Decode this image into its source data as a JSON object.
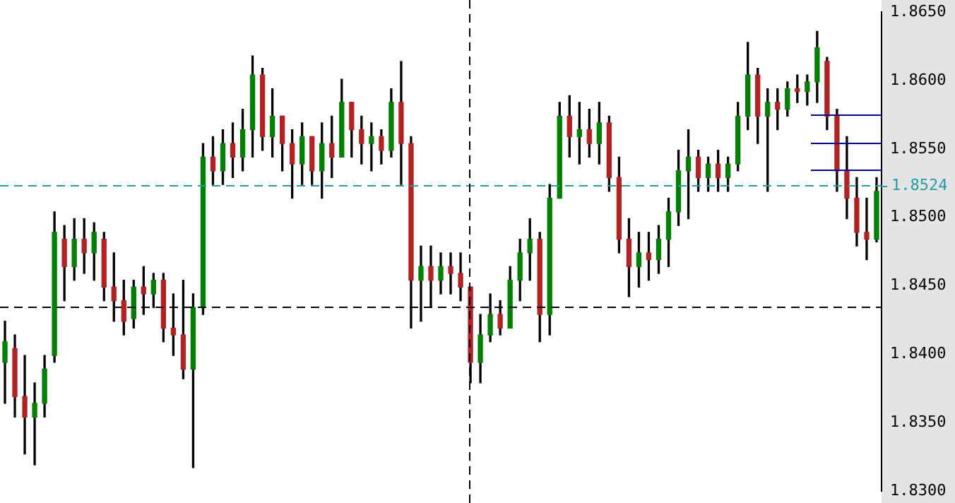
{
  "chart_data": {
    "type": "candlestick",
    "categories": [
      null,
      null,
      null,
      null,
      null,
      null,
      null,
      null,
      null,
      null,
      null,
      null,
      null,
      null,
      null,
      null,
      null,
      null,
      null,
      null,
      null,
      null,
      null,
      null,
      null,
      null,
      null,
      null,
      null,
      null,
      null,
      null,
      null,
      null,
      null,
      null,
      null,
      null,
      null,
      null,
      null,
      null,
      null,
      null,
      null,
      null,
      null,
      null,
      null,
      null,
      null,
      null,
      null,
      null,
      null,
      null,
      null,
      null,
      null,
      null,
      null,
      null,
      null,
      null,
      null,
      null,
      null,
      null,
      null,
      null,
      null,
      null,
      null,
      null,
      null,
      null,
      null,
      null,
      null,
      null,
      null,
      null,
      null,
      null,
      null,
      null,
      null,
      null,
      null
    ],
    "ohlc": [
      [
        1.8394,
        1.8424,
        1.8364,
        1.8409
      ],
      [
        1.8404,
        1.8414,
        1.8354,
        1.8369
      ],
      [
        1.8369,
        1.8399,
        1.8327,
        1.8354
      ],
      [
        1.8354,
        1.8379,
        1.8319,
        1.8364
      ],
      [
        1.8364,
        1.8399,
        1.8354,
        1.8389
      ],
      [
        1.8399,
        1.8504,
        1.8394,
        1.8489
      ],
      [
        1.8484,
        1.8494,
        1.8439,
        1.8464
      ],
      [
        1.8464,
        1.8499,
        1.8454,
        1.8484
      ],
      [
        1.8484,
        1.8499,
        1.8459,
        1.8474
      ],
      [
        1.8474,
        1.8496,
        1.8454,
        1.8489
      ],
      [
        1.8484,
        1.8489,
        1.8439,
        1.8449
      ],
      [
        1.8449,
        1.8474,
        1.8424,
        1.8439
      ],
      [
        1.8439,
        1.8454,
        1.8414,
        1.8424
      ],
      [
        1.8426,
        1.8454,
        1.8419,
        1.8449
      ],
      [
        1.8449,
        1.8464,
        1.8429,
        1.8444
      ],
      [
        1.8444,
        1.8459,
        1.8434,
        1.8454
      ],
      [
        1.8454,
        1.8459,
        1.8409,
        1.8419
      ],
      [
        1.8419,
        1.8444,
        1.8399,
        1.8414
      ],
      [
        1.8414,
        1.8454,
        1.8382,
        1.8389
      ],
      [
        1.8389,
        1.8444,
        1.8317,
        1.8434
      ],
      [
        1.8434,
        1.8554,
        1.8429,
        1.8544
      ],
      [
        1.8544,
        1.8559,
        1.8524,
        1.8534
      ],
      [
        1.8534,
        1.8564,
        1.8524,
        1.8554
      ],
      [
        1.8554,
        1.8569,
        1.8529,
        1.8544
      ],
      [
        1.8544,
        1.8579,
        1.8534,
        1.8564
      ],
      [
        1.8564,
        1.8618,
        1.8544,
        1.8604
      ],
      [
        1.8604,
        1.8609,
        1.8549,
        1.8559
      ],
      [
        1.8559,
        1.8594,
        1.8544,
        1.8574
      ],
      [
        1.8574,
        1.8574,
        1.8534,
        1.8554
      ],
      [
        1.8554,
        1.8564,
        1.8514,
        1.8539
      ],
      [
        1.8539,
        1.8569,
        1.8524,
        1.8559
      ],
      [
        1.8559,
        1.8559,
        1.8524,
        1.8534
      ],
      [
        1.8534,
        1.8569,
        1.8514,
        1.8554
      ],
      [
        1.8554,
        1.8574,
        1.8529,
        1.8544
      ],
      [
        1.8544,
        1.8601,
        1.8544,
        1.8584
      ],
      [
        1.8584,
        1.8584,
        1.8544,
        1.8564
      ],
      [
        1.8564,
        1.8574,
        1.8539,
        1.8554
      ],
      [
        1.8554,
        1.8569,
        1.8534,
        1.8559
      ],
      [
        1.8559,
        1.8564,
        1.8539,
        1.8549
      ],
      [
        1.8549,
        1.8594,
        1.8544,
        1.8584
      ],
      [
        1.8584,
        1.8614,
        1.8524,
        1.8554
      ],
      [
        1.8554,
        1.8559,
        1.8419,
        1.8454
      ],
      [
        1.8454,
        1.8479,
        1.8424,
        1.8464
      ],
      [
        1.8464,
        1.8479,
        1.8434,
        1.8454
      ],
      [
        1.8454,
        1.8474,
        1.8444,
        1.8464
      ],
      [
        1.8464,
        1.8474,
        1.8444,
        1.8459
      ],
      [
        1.8459,
        1.8474,
        1.8439,
        1.8449
      ],
      [
        1.8449,
        1.8449,
        1.8379,
        1.8394
      ],
      [
        1.8394,
        1.8429,
        1.8379,
        1.8414
      ],
      [
        1.8414,
        1.8444,
        1.8409,
        1.8429
      ],
      [
        1.8429,
        1.8439,
        1.8414,
        1.8419
      ],
      [
        1.8419,
        1.8464,
        1.8419,
        1.8454
      ],
      [
        1.8454,
        1.8484,
        1.8439,
        1.8474
      ],
      [
        1.8474,
        1.8499,
        1.8454,
        1.8484
      ],
      [
        1.8484,
        1.8489,
        1.8409,
        1.8429
      ],
      [
        1.8429,
        1.8524,
        1.8414,
        1.8514
      ],
      [
        1.8514,
        1.8584,
        1.8514,
        1.8574
      ],
      [
        1.8574,
        1.8589,
        1.8544,
        1.8559
      ],
      [
        1.8559,
        1.8584,
        1.8539,
        1.8564
      ],
      [
        1.8564,
        1.8579,
        1.8544,
        1.8554
      ],
      [
        1.8554,
        1.8584,
        1.8539,
        1.8569
      ],
      [
        1.8569,
        1.8574,
        1.8519,
        1.8529
      ],
      [
        1.8529,
        1.8544,
        1.8474,
        1.8484
      ],
      [
        1.8484,
        1.8499,
        1.8442,
        1.8464
      ],
      [
        1.8464,
        1.8489,
        1.8449,
        1.8474
      ],
      [
        1.8474,
        1.8489,
        1.8454,
        1.8469
      ],
      [
        1.8469,
        1.8494,
        1.8459,
        1.8484
      ],
      [
        1.8484,
        1.8514,
        1.8464,
        1.8504
      ],
      [
        1.8504,
        1.8549,
        1.8494,
        1.8534
      ],
      [
        1.8534,
        1.8564,
        1.8499,
        1.8544
      ],
      [
        1.8544,
        1.8549,
        1.8519,
        1.8529
      ],
      [
        1.8529,
        1.8544,
        1.8519,
        1.8539
      ],
      [
        1.8539,
        1.8549,
        1.8519,
        1.8529
      ],
      [
        1.8529,
        1.8544,
        1.8519,
        1.8539
      ],
      [
        1.8539,
        1.8584,
        1.8534,
        1.8574
      ],
      [
        1.8574,
        1.8628,
        1.8564,
        1.8604
      ],
      [
        1.8604,
        1.8609,
        1.8554,
        1.8574
      ],
      [
        1.8574,
        1.8594,
        1.8519,
        1.8584
      ],
      [
        1.8584,
        1.8594,
        1.8564,
        1.8579
      ],
      [
        1.8579,
        1.8599,
        1.8574,
        1.8594
      ],
      [
        1.8594,
        1.8604,
        1.8584,
        1.8592
      ],
      [
        1.8592,
        1.8604,
        1.8582,
        1.8599
      ],
      [
        1.8599,
        1.8636,
        1.8584,
        1.8624
      ],
      [
        1.8614,
        1.8617,
        1.8564,
        1.8574
      ],
      [
        1.8574,
        1.8579,
        1.8519,
        1.8534
      ],
      [
        1.8534,
        1.8559,
        1.8499,
        1.8514
      ],
      [
        1.8514,
        1.8529,
        1.8479,
        1.8489
      ],
      [
        1.8489,
        1.8514,
        1.8469,
        1.8484
      ],
      [
        1.8484,
        1.8529,
        1.8482,
        1.8519
      ]
    ],
    "colors": [
      "#008000",
      "#b22222",
      "#b22222",
      "#008000",
      "#008000",
      "#008000",
      "#b22222",
      "#008000",
      "#b22222",
      "#008000",
      "#b22222",
      "#b22222",
      "#b22222",
      "#008000",
      "#b22222",
      "#008000",
      "#b22222",
      "#b22222",
      "#b22222",
      "#008000",
      "#008000",
      "#b22222",
      "#008000",
      "#b22222",
      "#008000",
      "#008000",
      "#b22222",
      "#008000",
      "#b22222",
      "#b22222",
      "#008000",
      "#b22222",
      "#008000",
      "#b22222",
      "#008000",
      "#b22222",
      "#b22222",
      "#008000",
      "#b22222",
      "#008000",
      "#b22222",
      "#b22222",
      "#008000",
      "#b22222",
      "#008000",
      "#b22222",
      "#b22222",
      "#b22222",
      "#008000",
      "#008000",
      "#b22222",
      "#008000",
      "#008000",
      "#008000",
      "#b22222",
      "#008000",
      "#008000",
      "#b22222",
      "#008000",
      "#b22222",
      "#008000",
      "#b22222",
      "#b22222",
      "#b22222",
      "#008000",
      "#b22222",
      "#008000",
      "#008000",
      "#008000",
      "#008000",
      "#b22222",
      "#008000",
      "#b22222",
      "#008000",
      "#008000",
      "#008000",
      "#b22222",
      "#008000",
      "#b22222",
      "#008000",
      "#b22222",
      "#008000",
      "#008000",
      "#b22222",
      "#b22222",
      "#b22222",
      "#b22222",
      "#b22222",
      "#008000"
    ],
    "ylim": [
      1.83,
      1.865
    ],
    "yticks": [
      {
        "value": 1.83,
        "label": "1.8300"
      },
      {
        "value": 1.835,
        "label": "1.8350"
      },
      {
        "value": 1.84,
        "label": "1.8400"
      },
      {
        "value": 1.845,
        "label": "1.8450"
      },
      {
        "value": 1.85,
        "label": "1.8500"
      },
      {
        "value": 1.855,
        "label": "1.8550"
      },
      {
        "value": 1.86,
        "label": "1.8600"
      },
      {
        "value": 1.865,
        "label": "1.8650"
      }
    ],
    "tick_labels": "y",
    "ref_lines": [
      {
        "axis": "y",
        "value": 1.8524,
        "label": "1.8524",
        "color": "#20a0a0",
        "line_style": "dashed"
      },
      {
        "axis": "y",
        "value": 1.8435,
        "label": null,
        "color": "#000000",
        "line_style": "dashed"
      }
    ],
    "grid": false,
    "legend": false
  }
}
